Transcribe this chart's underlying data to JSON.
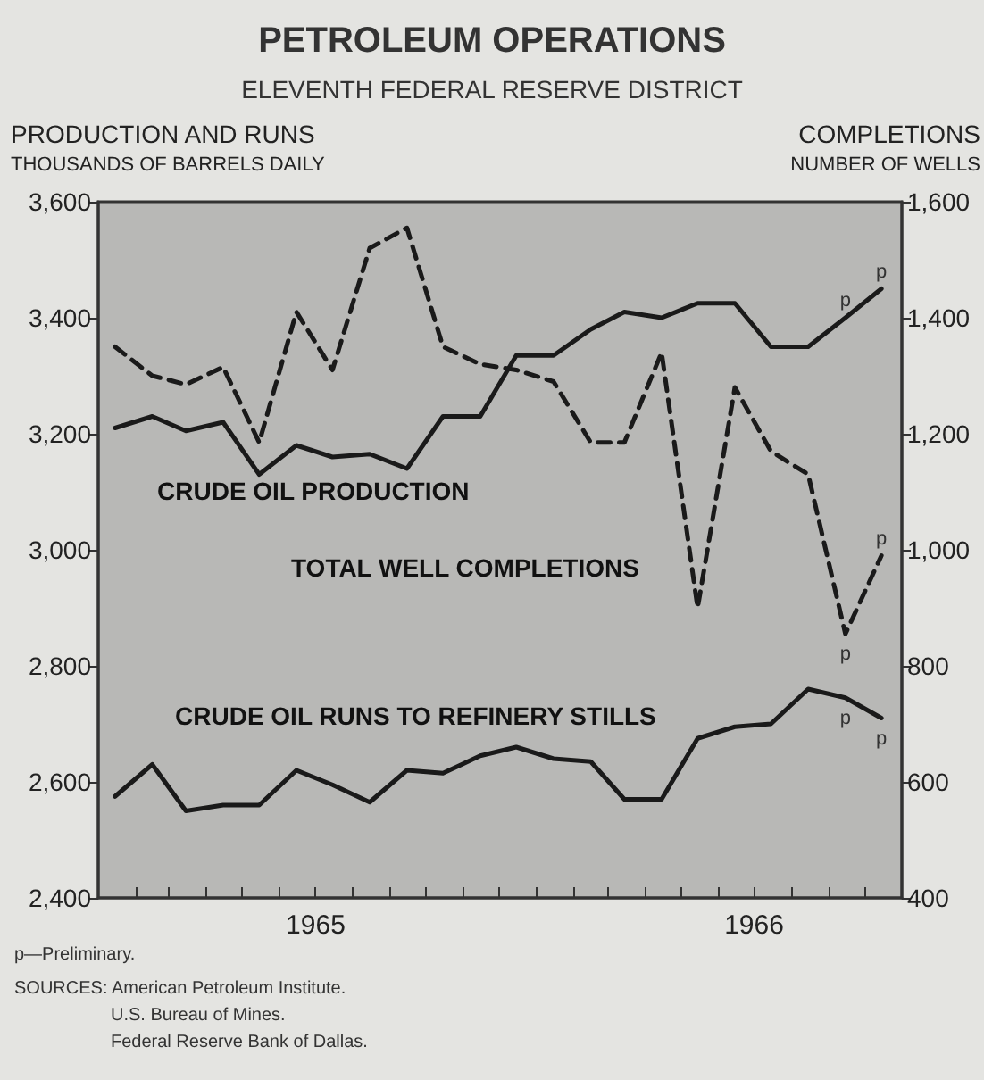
{
  "chart_data": {
    "type": "line",
    "title": "PETROLEUM OPERATIONS",
    "subtitle": "ELEVENTH FEDERAL RESERVE DISTRICT",
    "ylabel": "PRODUCTION AND RUNS\nTHOUSANDS OF BARRELS DAILY",
    "y2label": "COMPLETIONS\nNUMBER OF WELLS",
    "x": [
      "1965-01-15",
      "1965-02-15",
      "1965-03-15",
      "1965-04-15",
      "1965-05-15",
      "1965-06-15",
      "1965-07-15",
      "1965-08-15",
      "1965-09-15",
      "1965-10-15",
      "1965-11-15",
      "1965-12-15",
      "1966-01-15",
      "1966-02-15",
      "1966-03-15",
      "1966-04-15",
      "1966-05-15",
      "1966-06-15",
      "1966-07-15",
      "1966-08-15",
      "1966-09-15",
      "1966-10-15"
    ],
    "series": [
      {
        "name": "CRUDE OIL PRODUCTION",
        "color": "#1a1a1a",
        "line_style": "solid",
        "values": [
          3210,
          3230,
          3205,
          3220,
          3130,
          3180,
          3160,
          3165,
          3140,
          3230,
          3230,
          3335,
          3335,
          3380,
          3410,
          3400,
          3425,
          3425,
          3350,
          3350,
          3400,
          3450
        ],
        "value_labels": [
          null,
          null,
          null,
          null,
          null,
          null,
          null,
          null,
          null,
          null,
          null,
          null,
          null,
          null,
          null,
          null,
          null,
          null,
          null,
          null,
          "p",
          "p"
        ]
      },
      {
        "name": "TOTAL WELL COMPLETIONS",
        "color": "#1a1a1a",
        "line_style": "dashed",
        "axis": "y2",
        "values": [
          1350,
          1300,
          1285,
          1315,
          1185,
          1410,
          1310,
          1520,
          1555,
          1350,
          1320,
          1310,
          1290,
          1185,
          1185,
          1340,
          900,
          1280,
          1170,
          1130,
          855,
          990
        ],
        "value_labels": [
          null,
          null,
          null,
          null,
          null,
          null,
          null,
          null,
          null,
          null,
          null,
          null,
          null,
          null,
          null,
          null,
          null,
          null,
          null,
          null,
          "p",
          "p"
        ]
      },
      {
        "name": "CRUDE OIL RUNS TO REFINERY STILLS",
        "color": "#1a1a1a",
        "line_style": "solid",
        "values": [
          2575,
          2630,
          2550,
          2560,
          2560,
          2620,
          2595,
          2565,
          2620,
          2615,
          2645,
          2660,
          2640,
          2635,
          2570,
          2570,
          2675,
          2695,
          2700,
          2760,
          2745,
          2710
        ],
        "value_labels": [
          null,
          null,
          null,
          null,
          null,
          null,
          null,
          null,
          null,
          null,
          null,
          null,
          null,
          null,
          null,
          null,
          null,
          null,
          null,
          null,
          "p",
          "p"
        ]
      }
    ],
    "xlim": [
      "1965-01-01",
      "1966-11-01"
    ],
    "xticks": [
      {
        "value": "1965-02-01",
        "label": null
      },
      {
        "value": "1965-03-01",
        "label": null
      },
      {
        "value": "1965-04-01",
        "label": null
      },
      {
        "value": "1965-05-01",
        "label": null
      },
      {
        "value": "1965-06-01",
        "label": null
      },
      {
        "value": "1965-07-01",
        "label": "1965"
      },
      {
        "value": "1965-08-01",
        "label": null
      },
      {
        "value": "1965-09-01",
        "label": null
      },
      {
        "value": "1965-10-01",
        "label": null
      },
      {
        "value": "1965-11-01",
        "label": null
      },
      {
        "value": "1965-12-01",
        "label": null
      },
      {
        "value": "1966-01-01",
        "label": null
      },
      {
        "value": "1966-02-01",
        "label": null
      },
      {
        "value": "1966-03-01",
        "label": null
      },
      {
        "value": "1966-04-01",
        "label": null
      },
      {
        "value": "1966-05-01",
        "label": null
      },
      {
        "value": "1966-06-01",
        "label": null
      },
      {
        "value": "1966-07-01",
        "label": "1966"
      },
      {
        "value": "1966-08-01",
        "label": null
      },
      {
        "value": "1966-09-01",
        "label": null
      },
      {
        "value": "1966-10-01",
        "label": null
      }
    ],
    "ylim": [
      2400,
      3600
    ],
    "yticks": [
      {
        "value": 2400,
        "label": "2,400"
      },
      {
        "value": 2600,
        "label": "2,600"
      },
      {
        "value": 2800,
        "label": "2,800"
      },
      {
        "value": 3000,
        "label": "3,000"
      },
      {
        "value": 3200,
        "label": "3,200"
      },
      {
        "value": 3400,
        "label": "3,400"
      },
      {
        "value": 3600,
        "label": "3,600"
      }
    ],
    "y2lim": [
      400,
      1600
    ],
    "y2ticks": [
      400,
      600,
      800,
      {
        "value": 1000,
        "label": "1,000"
      },
      {
        "value": 1200,
        "label": "1,200"
      },
      {
        "value": 1400,
        "label": "1,400"
      },
      {
        "value": 1600,
        "label": "1,600"
      }
    ],
    "grid": false,
    "legend": false,
    "marker": "none",
    "annotations": [
      "p—Preliminary.",
      "SOURCES: American Petroleum Institute.",
      "U.S. Bureau of Mines.",
      "Federal Reserve Bank of Dallas."
    ]
  }
}
